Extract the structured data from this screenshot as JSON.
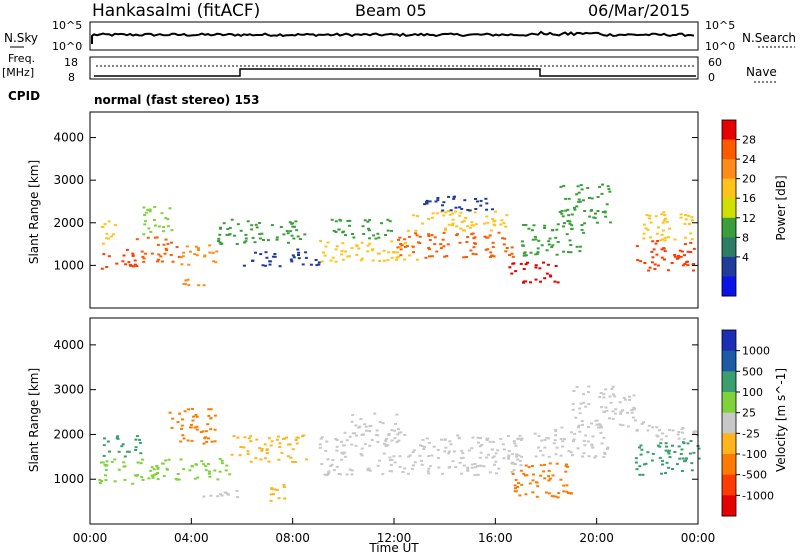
{
  "header": {
    "station": "Hankasalmi (fitACF)",
    "beam": "Beam 05",
    "date": "06/Mar/2015"
  },
  "noise_panel": {
    "left_label": "N.Sky",
    "left_ticks": [
      "10^5",
      "10^0"
    ],
    "right_label": "N.Search",
    "right_ticks": [
      "10^5",
      "10^0"
    ]
  },
  "freq_panel": {
    "left_label_line1": "Freq.",
    "left_label_line2": "[MHz]",
    "left_ticks": [
      "18",
      "8"
    ],
    "right_label": "Nave",
    "right_ticks": [
      "60",
      "0"
    ]
  },
  "cpid": {
    "label": "CPID",
    "mode": "normal (fast stereo) 153"
  },
  "power_colorbar": {
    "label": "Power [dB]",
    "ticks": [
      "28",
      "24",
      "20",
      "16",
      "12",
      "8",
      "4"
    ],
    "colors": [
      "#e60000",
      "#ff5a00",
      "#ff8c1a",
      "#ffc31a",
      "#cfe000",
      "#3a9e3a",
      "#2d7d66",
      "#1f3c9c",
      "#0a14e6"
    ]
  },
  "velocity_colorbar": {
    "label": "Velocity [m s^-1]",
    "ticks": [
      "1000",
      "500",
      "100",
      "25",
      "-25",
      "-100",
      "-500",
      "-1000"
    ],
    "colors": [
      "#1a2fb3",
      "#1f5aa6",
      "#3a9e6e",
      "#7fd23a",
      "#c8c8c8",
      "#ffb41e",
      "#ff7a00",
      "#ff3c00",
      "#e60000"
    ]
  },
  "chart_data": [
    {
      "type": "heatmap",
      "name": "power",
      "ylabel": "Slant Range [km]",
      "ylim": [
        0,
        4600
      ],
      "yticks": [
        1000,
        2000,
        3000,
        4000
      ],
      "xlim": [
        0,
        24
      ],
      "bands": [
        {
          "t0": 0.3,
          "t1": 1.8,
          "r0": 900,
          "r1": 1400,
          "color": "#ff3a00"
        },
        {
          "t0": 0.4,
          "t1": 1.0,
          "r0": 1400,
          "r1": 2100,
          "color": "#ffc31a"
        },
        {
          "t0": 1.8,
          "t1": 3.5,
          "r0": 1100,
          "r1": 1700,
          "color": "#ff5a00"
        },
        {
          "t0": 2.0,
          "t1": 3.2,
          "r0": 1700,
          "r1": 2400,
          "color": "#7fd23a"
        },
        {
          "t0": 3.5,
          "t1": 5.0,
          "r0": 1000,
          "r1": 1500,
          "color": "#ff8c1a"
        },
        {
          "t0": 3.0,
          "t1": 4.5,
          "r0": 550,
          "r1": 750,
          "color": "#ff8c1a"
        },
        {
          "t0": 5.0,
          "t1": 8.5,
          "r0": 1500,
          "r1": 2100,
          "color": "#3a9e3a"
        },
        {
          "t0": 6.0,
          "t1": 9.0,
          "r0": 1000,
          "r1": 1400,
          "color": "#1f3c9c"
        },
        {
          "t0": 9.0,
          "t1": 13.0,
          "r0": 1100,
          "r1": 1600,
          "color": "#ffc31a"
        },
        {
          "t0": 9.5,
          "t1": 12.0,
          "r0": 1600,
          "r1": 2100,
          "color": "#3a9e3a"
        },
        {
          "t0": 12.0,
          "t1": 16.8,
          "r0": 1200,
          "r1": 1800,
          "color": "#ff5a00"
        },
        {
          "t0": 12.5,
          "t1": 16.5,
          "r0": 1800,
          "r1": 2300,
          "color": "#ffc31a"
        },
        {
          "t0": 13.0,
          "t1": 16.0,
          "r0": 2300,
          "r1": 2700,
          "color": "#1f3c9c"
        },
        {
          "t0": 16.5,
          "t1": 18.5,
          "r0": 600,
          "r1": 1100,
          "color": "#e60000"
        },
        {
          "t0": 17.0,
          "t1": 19.5,
          "r0": 1200,
          "r1": 2000,
          "color": "#3a9e3a"
        },
        {
          "t0": 18.5,
          "t1": 20.5,
          "r0": 2000,
          "r1": 3000,
          "color": "#3a9e3a"
        },
        {
          "t0": 21.5,
          "t1": 24.0,
          "r0": 900,
          "r1": 1600,
          "color": "#ff3a00"
        },
        {
          "t0": 21.8,
          "t1": 24.0,
          "r0": 1600,
          "r1": 2300,
          "color": "#ffc31a"
        }
      ]
    },
    {
      "type": "heatmap",
      "name": "velocity",
      "ylabel": "Slant Range [km]",
      "xlabel": "Time UT",
      "ylim": [
        0,
        4600
      ],
      "yticks": [
        1000,
        2000,
        3000,
        4000
      ],
      "xlim": [
        0,
        24
      ],
      "xticks": [
        "00:00",
        "04:00",
        "08:00",
        "12:00",
        "16:00",
        "20:00",
        "00:00"
      ],
      "bands": [
        {
          "t0": 0.3,
          "t1": 2.5,
          "r0": 900,
          "r1": 1500,
          "color": "#7fd23a"
        },
        {
          "t0": 0.5,
          "t1": 2.0,
          "r0": 1500,
          "r1": 2000,
          "color": "#3a9e6e"
        },
        {
          "t0": 2.5,
          "t1": 5.5,
          "r0": 1000,
          "r1": 1500,
          "color": "#7fd23a"
        },
        {
          "t0": 3.0,
          "t1": 5.0,
          "r0": 1800,
          "r1": 2600,
          "color": "#ff7a00"
        },
        {
          "t0": 5.5,
          "t1": 8.5,
          "r0": 1400,
          "r1": 2000,
          "color": "#ffb41e"
        },
        {
          "t0": 4.0,
          "t1": 6.0,
          "r0": 600,
          "r1": 800,
          "color": "#c8c8c8"
        },
        {
          "t0": 7.0,
          "t1": 8.0,
          "r0": 500,
          "r1": 900,
          "color": "#ffb41e"
        },
        {
          "t0": 9.0,
          "t1": 17.0,
          "r0": 1100,
          "r1": 2000,
          "color": "#c8c8c8"
        },
        {
          "t0": 10.0,
          "t1": 12.5,
          "r0": 2000,
          "r1": 2500,
          "color": "#c8c8c8"
        },
        {
          "t0": 16.5,
          "t1": 19.0,
          "r0": 600,
          "r1": 1400,
          "color": "#ff7a00"
        },
        {
          "t0": 17.5,
          "t1": 20.5,
          "r0": 1500,
          "r1": 2200,
          "color": "#c8c8c8"
        },
        {
          "t0": 19.0,
          "t1": 21.5,
          "r0": 2200,
          "r1": 3100,
          "color": "#c8c8c8"
        },
        {
          "t0": 21.5,
          "t1": 24.0,
          "r0": 1100,
          "r1": 1900,
          "color": "#3a9e6e"
        },
        {
          "t0": 21.5,
          "t1": 24.0,
          "r0": 1900,
          "r1": 2300,
          "color": "#c8c8c8"
        }
      ]
    }
  ]
}
